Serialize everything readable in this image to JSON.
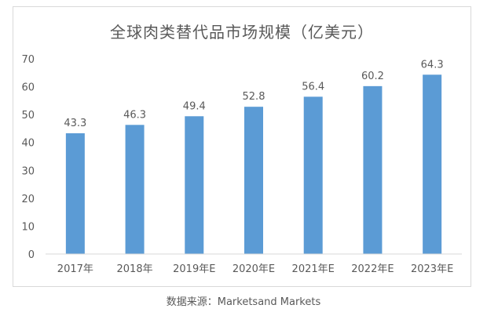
{
  "chart_data": {
    "type": "bar",
    "title": "全球肉类替代品市场规模（亿美元）",
    "categories": [
      "2017年",
      "2018年",
      "2019年E",
      "2020年E",
      "2021年E",
      "2022年E",
      "2023年E"
    ],
    "values": [
      43.3,
      46.3,
      49.4,
      52.8,
      56.4,
      60.2,
      64.3
    ],
    "data_labels": [
      "43.3",
      "46.3",
      "49.4",
      "52.8",
      "56.4",
      "60.2",
      "64.3"
    ],
    "ylim": [
      0,
      70
    ],
    "yticks": [
      0,
      10,
      20,
      30,
      40,
      50,
      60,
      70
    ],
    "ytick_labels": [
      "0",
      "10",
      "20",
      "30",
      "40",
      "50",
      "60",
      "70"
    ],
    "grid": false,
    "bar_color": "#5b9bd5",
    "axis_color": "#d9d9d9"
  },
  "source": "数据来源：Marketsand Markets"
}
